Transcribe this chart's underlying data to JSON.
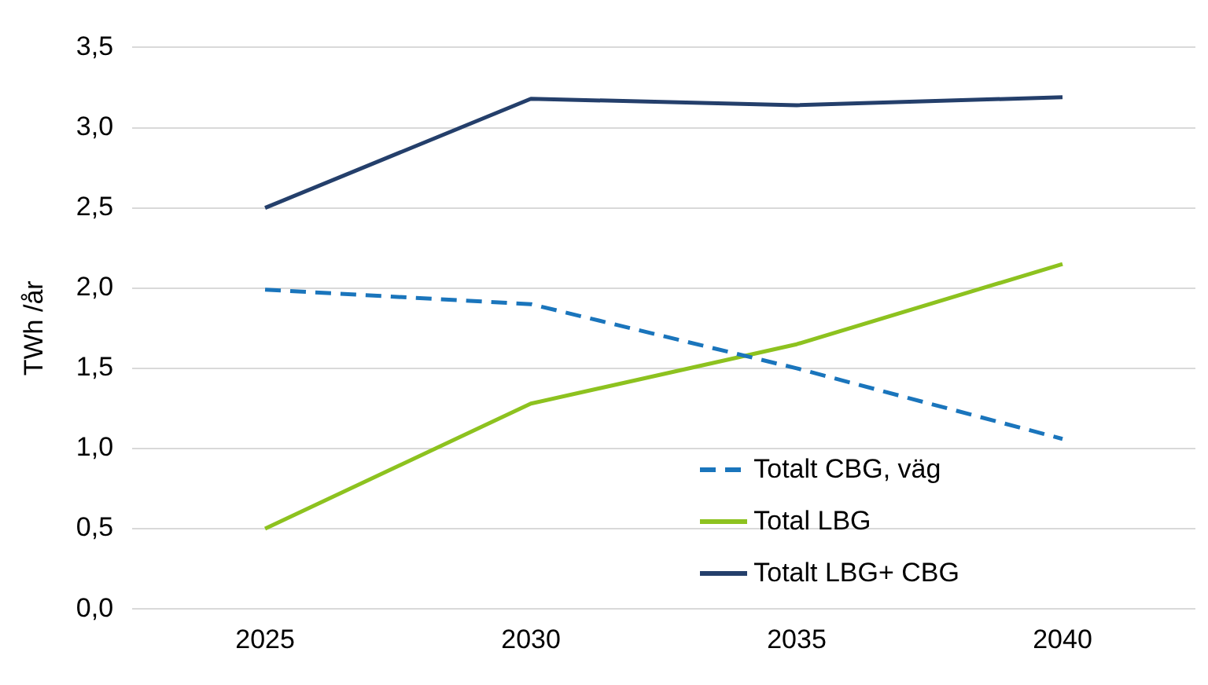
{
  "chart_data": {
    "type": "line",
    "ylabel": "TWh /år",
    "categories": [
      "2025",
      "2030",
      "2035",
      "2040"
    ],
    "series": [
      {
        "name": "Totalt CBG, väg",
        "color": "#1a75bc",
        "line_style": "dashed",
        "values": [
          1.99,
          1.9,
          1.5,
          1.06
        ]
      },
      {
        "name": "Total LBG",
        "color": "#8dc21f",
        "line_style": "solid",
        "values": [
          0.5,
          1.28,
          1.65,
          2.15
        ]
      },
      {
        "name": "Totalt LBG+ CBG",
        "color": "#243f6b",
        "line_style": "solid",
        "values": [
          2.5,
          3.18,
          3.14,
          3.19
        ]
      }
    ],
    "ylim": [
      0,
      3.5
    ],
    "yticks": [
      {
        "value": 0,
        "label": "0,0"
      },
      {
        "value": 0.5,
        "label": "0,5"
      },
      {
        "value": 1,
        "label": "1,0"
      },
      {
        "value": 1.5,
        "label": "1,5"
      },
      {
        "value": 2,
        "label": "2,0"
      },
      {
        "value": 2.5,
        "label": "2,5"
      },
      {
        "value": 3,
        "label": "3,0"
      },
      {
        "value": 3.5,
        "label": "3,5"
      }
    ],
    "grid": "y",
    "legend": "bottom right",
    "marker": "none"
  }
}
